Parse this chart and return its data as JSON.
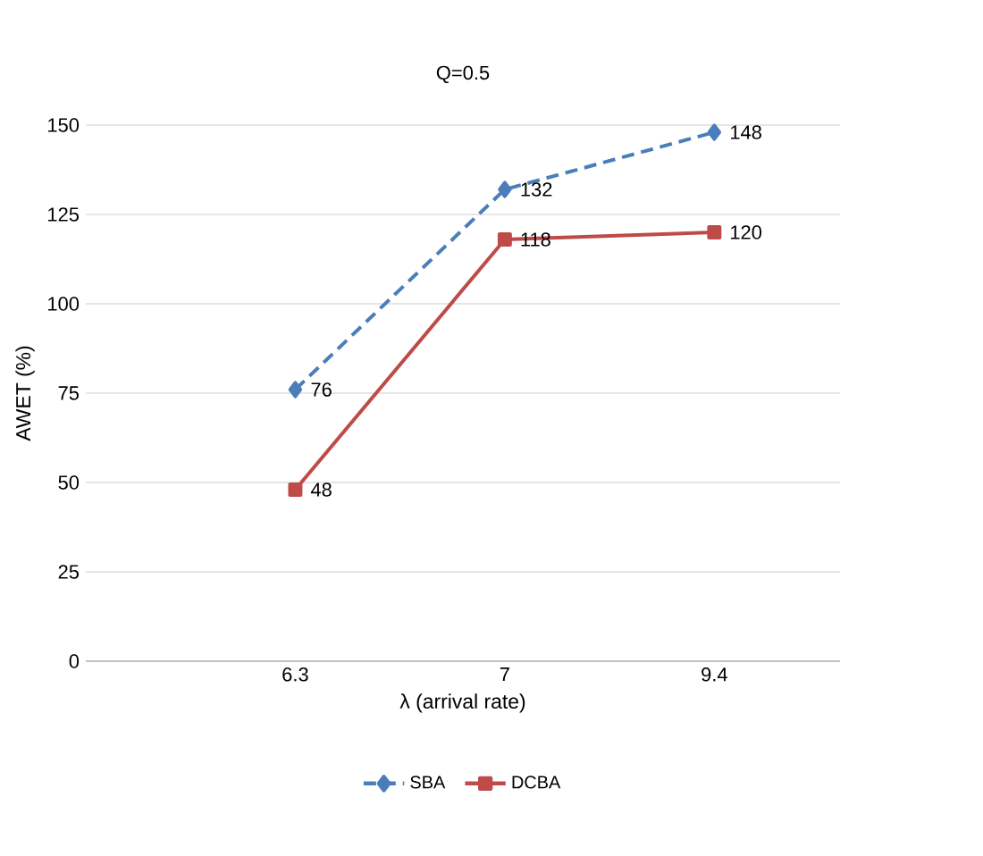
{
  "chart_data": {
    "type": "line",
    "title": "Q=0.5",
    "xlabel": "λ (arrival rate)",
    "ylabel": "AWET (%)",
    "categories": [
      "6.3",
      "7",
      "9.4"
    ],
    "series": [
      {
        "name": "SBA",
        "color": "#4a7ebb",
        "values": [
          76,
          132,
          148
        ],
        "marker": "diamond",
        "line_style": "dashed"
      },
      {
        "name": "DCBA",
        "color": "#be4b48",
        "values": [
          48,
          118,
          120
        ],
        "marker": "square",
        "line_style": "solid"
      }
    ],
    "ylim": [
      0,
      150
    ],
    "yticks": [
      0,
      25,
      50,
      75,
      100,
      125,
      150
    ],
    "grid": "y",
    "legend": "bottom",
    "data_labels": true
  }
}
